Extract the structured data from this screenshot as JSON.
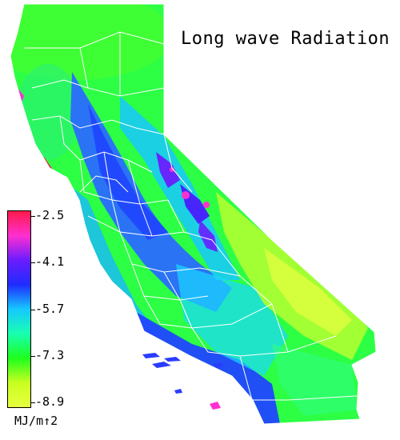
{
  "title": "Long wave Radiation",
  "legend": {
    "ticks": [
      "-2.5",
      "-4.1",
      "-5.7",
      "-7.3",
      "-8.9"
    ],
    "unit": "MJ/m↑2",
    "colors": [
      "#ff1a4a",
      "#ff2fd0",
      "#6a1cff",
      "#1f2cff",
      "#16c8ff",
      "#18ffb0",
      "#1dff1d",
      "#c8ff20",
      "#e8ff40"
    ]
  },
  "map": {
    "region": "California",
    "palette": {
      "high": "#ff1a4a",
      "magenta": "#ff30d0",
      "purple": "#6a1cff",
      "blue": "#1f5cff",
      "cyan": "#19c0ff",
      "teal": "#18f5c0",
      "green": "#25ff40",
      "lime": "#b8ff30",
      "yellow": "#e6ff40",
      "county_lines": "#ffffff"
    }
  }
}
